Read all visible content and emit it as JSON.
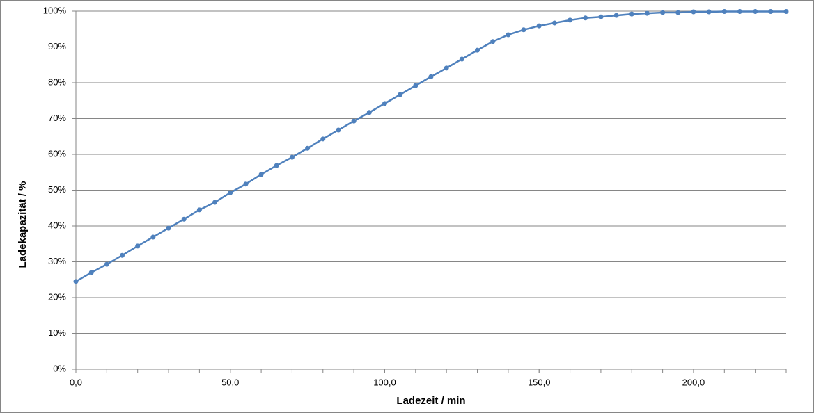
{
  "chart_data": {
    "type": "line",
    "x_label": "Ladezeit / min",
    "y_label": "Ladekapazität / %",
    "x": [
      0,
      5,
      10,
      15,
      20,
      25,
      30,
      35,
      40,
      45,
      50,
      55,
      60,
      65,
      70,
      75,
      80,
      85,
      90,
      95,
      100,
      105,
      110,
      115,
      120,
      125,
      130,
      135,
      140,
      145,
      150,
      155,
      160,
      165,
      170,
      175,
      180,
      185,
      190,
      195,
      200,
      205,
      210,
      215,
      220,
      225,
      230
    ],
    "series": [
      {
        "name": "Ladekapazität",
        "color": "#4f81bd",
        "values": [
          24.5,
          27.0,
          29.3,
          31.8,
          34.4,
          36.9,
          39.4,
          41.9,
          44.5,
          46.6,
          49.3,
          51.7,
          54.4,
          56.9,
          59.2,
          61.7,
          64.3,
          66.8,
          69.3,
          71.7,
          74.2,
          76.7,
          79.2,
          81.7,
          84.1,
          86.6,
          89.1,
          91.5,
          93.4,
          94.8,
          95.9,
          96.7,
          97.5,
          98.1,
          98.4,
          98.8,
          99.2,
          99.4,
          99.6,
          99.6,
          99.8,
          99.8,
          99.9,
          99.9,
          99.9,
          99.9,
          99.9
        ]
      }
    ],
    "xlim": [
      0,
      230
    ],
    "xticks": [
      {
        "value": 0,
        "label": "0,0"
      },
      {
        "value": 50,
        "label": "50,0"
      },
      {
        "value": 100,
        "label": "100,0"
      },
      {
        "value": 150,
        "label": "150,0"
      },
      {
        "value": 200,
        "label": "200,0"
      }
    ],
    "x_minor_ticks": [
      0,
      10,
      20,
      30,
      40,
      50,
      60,
      70,
      80,
      90,
      100,
      110,
      120,
      130,
      140,
      150,
      160,
      170,
      180,
      190,
      200,
      210,
      220,
      230
    ],
    "ylim": [
      0,
      100
    ],
    "yticks": [
      {
        "value": 0,
        "label": "0%"
      },
      {
        "value": 10,
        "label": "10%"
      },
      {
        "value": 20,
        "label": "20%"
      },
      {
        "value": 30,
        "label": "30%"
      },
      {
        "value": 40,
        "label": "40%"
      },
      {
        "value": 50,
        "label": "50%"
      },
      {
        "value": 60,
        "label": "60%"
      },
      {
        "value": 70,
        "label": "70%"
      },
      {
        "value": 80,
        "label": "80%"
      },
      {
        "value": 90,
        "label": "90%"
      },
      {
        "value": 100,
        "label": "100%"
      }
    ],
    "grid": true
  }
}
